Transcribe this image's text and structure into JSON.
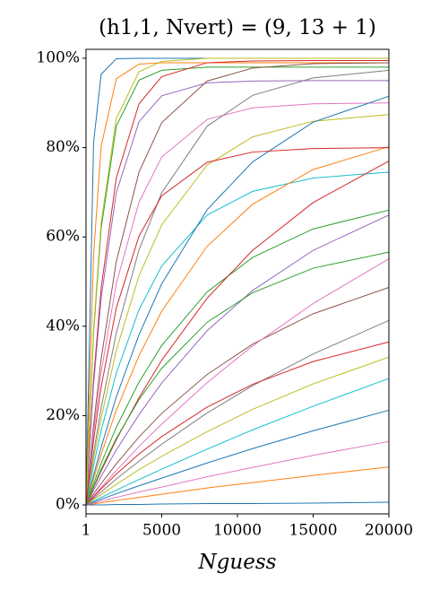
{
  "chart_data": {
    "type": "line",
    "title": "(h1,1, Nvert) = (9, 13 + 1)",
    "x_label": "Nguess",
    "x": [
      1,
      500,
      1000,
      2000,
      3500,
      5000,
      8000,
      11000,
      15000,
      20000
    ],
    "xlim": [
      1,
      20000
    ],
    "xticks": [
      1,
      5000,
      10000,
      15000,
      20000
    ],
    "ylim": [
      -2,
      102
    ],
    "yticks": [
      {
        "value": 0,
        "label": "0%"
      },
      {
        "value": 20,
        "label": "20%"
      },
      {
        "value": 40,
        "label": "40%"
      },
      {
        "value": 60,
        "label": "60%"
      },
      {
        "value": 80,
        "label": "80%"
      },
      {
        "value": 100,
        "label": "100%"
      }
    ],
    "grid": false,
    "series": [
      {
        "color": "#1f77b4",
        "values": [
          0,
          81.1,
          96.4,
          99.9,
          100,
          100,
          100,
          100,
          100,
          100
        ]
      },
      {
        "color": "#ff7f0e",
        "values": [
          0,
          55.9,
          80.3,
          95.4,
          98.7,
          99,
          99,
          99,
          99,
          99
        ]
      },
      {
        "color": "#2ca02c",
        "values": [
          0,
          38.5,
          61.9,
          84.8,
          95.1,
          97.3,
          98,
          98,
          98,
          98
        ]
      },
      {
        "color": "#d62728",
        "values": [
          0,
          28.2,
          48.5,
          73.2,
          89.8,
          95.9,
          99.0,
          99.4,
          99.5,
          99.5
        ]
      },
      {
        "color": "#9467bd",
        "values": [
          0,
          26.9,
          46.3,
          69.9,
          85.8,
          91.6,
          94.5,
          94.9,
          95,
          95
        ]
      },
      {
        "color": "#8c564b",
        "values": [
          0,
          17.9,
          32.7,
          54.5,
          74.5,
          85.6,
          94.9,
          97.8,
          98.8,
          99
        ]
      },
      {
        "color": "#e377c2",
        "values": [
          0,
          16.3,
          29.7,
          49.6,
          67.8,
          77.9,
          86.3,
          88.9,
          89.8,
          90
        ]
      },
      {
        "color": "#7f7f7f",
        "values": [
          0,
          11.6,
          21.7,
          38.5,
          57.1,
          69.9,
          84.8,
          91.7,
          95.6,
          97.3
        ]
      },
      {
        "color": "#bcbd22",
        "values": [
          0,
          10.4,
          19.4,
          34.6,
          51.3,
          62.7,
          76.1,
          82.4,
          85.9,
          87.4
        ]
      },
      {
        "color": "#17becf",
        "values": [
          0,
          8.9,
          16.6,
          29.5,
          43.7,
          53.5,
          64.9,
          70.2,
          73.2,
          74.5
        ]
      },
      {
        "color": "#1f77b4",
        "values": [
          0,
          6.7,
          12.9,
          24.2,
          38.1,
          49.5,
          66.1,
          76.8,
          85.7,
          91.5
        ]
      },
      {
        "color": "#ff7f0e",
        "values": [
          0,
          5.9,
          11.3,
          21.2,
          33.4,
          43.4,
          57.9,
          67.3,
          75.1,
          80.2
        ]
      },
      {
        "color": "#2ca02c",
        "values": [
          0,
          4.8,
          9.3,
          17.4,
          27.5,
          35.7,
          47.7,
          55.4,
          61.8,
          66.0
        ]
      },
      {
        "color": "#d62728",
        "values": [
          0,
          3.9,
          7.6,
          14.6,
          24.0,
          32.4,
          46.3,
          57.0,
          67.7,
          77.0
        ]
      },
      {
        "color": "#9467bd",
        "values": [
          0,
          3.3,
          6.4,
          12.3,
          20.2,
          27.3,
          39.0,
          48.0,
          57.0,
          64.9
        ]
      },
      {
        "color": "#8c564b",
        "values": [
          0,
          2.5,
          4.8,
          9.2,
          15.2,
          20.5,
          29.2,
          36.0,
          42.8,
          48.7
        ]
      },
      {
        "color": "#e377c2",
        "values": [
          0,
          2.0,
          3.9,
          7.7,
          13.1,
          18.1,
          27.4,
          35.6,
          45.1,
          55.1
        ]
      },
      {
        "color": "#7f7f7f",
        "values": [
          0,
          1.5,
          2.9,
          5.8,
          9.8,
          13.6,
          20.6,
          26.7,
          33.8,
          41.3
        ]
      },
      {
        "color": "#bcbd22",
        "values": [
          0,
          1.2,
          2.3,
          4.6,
          7.9,
          10.9,
          16.4,
          21.4,
          27.1,
          33.1
        ]
      },
      {
        "color": "#17becf",
        "values": [
          0,
          0.8,
          1.7,
          3.3,
          5.7,
          8.0,
          12.5,
          16.8,
          22.1,
          28.3
        ]
      },
      {
        "color": "#1f77b4",
        "values": [
          0,
          0.6,
          1.3,
          2.5,
          4.3,
          6.0,
          9.4,
          12.6,
          16.6,
          21.2
        ]
      },
      {
        "color": "#e377c2",
        "values": [
          0,
          0.4,
          0.9,
          1.7,
          2.9,
          4.0,
          6.3,
          8.4,
          11.1,
          14.2
        ]
      },
      {
        "color": "#ff7f0e",
        "values": [
          0,
          0.2,
          0.5,
          1.0,
          1.7,
          2.4,
          3.8,
          5.0,
          6.6,
          8.5
        ]
      },
      {
        "color": "#1f77b4",
        "values": [
          0,
          0,
          0,
          0.1,
          0.1,
          0.2,
          0.3,
          0.3,
          0.4,
          0.6
        ]
      },
      {
        "color": "#bcbd22",
        "values": [
          0,
          39.3,
          63.2,
          86.5,
          97.0,
          99.3,
          100,
          100,
          100,
          100
        ]
      },
      {
        "color": "#d62728",
        "values": [
          0,
          14.5,
          26.4,
          44.1,
          60.2,
          69.2,
          76.7,
          79.0,
          79.8,
          80
        ]
      },
      {
        "color": "#2ca02c",
        "values": [
          0,
          4.1,
          8.0,
          14.9,
          23.6,
          30.6,
          40.9,
          47.5,
          53.0,
          56.6
        ]
      },
      {
        "color": "#d62728",
        "values": [
          0,
          1.8,
          3.6,
          6.9,
          11.4,
          15.3,
          21.9,
          27.0,
          32.1,
          36.5
        ]
      }
    ]
  }
}
